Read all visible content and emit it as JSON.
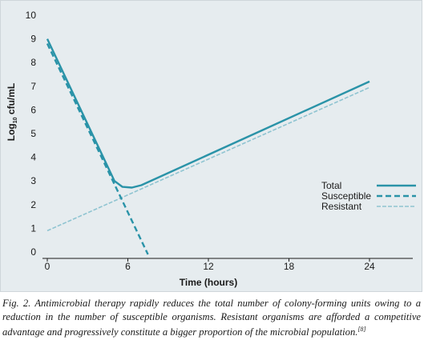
{
  "chart_data": {
    "type": "line",
    "xlabel": "Time (hours)",
    "ylabel_main": "Log",
    "ylabel_sub": "10",
    "ylabel_rest": " cfu/mL",
    "x_ticks": [
      0,
      6,
      12,
      18,
      24
    ],
    "y_ticks": [
      0,
      1,
      2,
      3,
      4,
      5,
      6,
      7,
      8,
      9,
      10
    ],
    "xlim": [
      0,
      27
    ],
    "ylim": [
      0,
      10
    ],
    "grid": false,
    "legend_position": "right",
    "series": [
      {
        "name": "Total",
        "color": "#2a93a8",
        "style": "solid",
        "points": [
          [
            0,
            9
          ],
          [
            5,
            3.0
          ],
          [
            5.6,
            2.75
          ],
          [
            6.3,
            2.72
          ],
          [
            7,
            2.82
          ],
          [
            24,
            7.2
          ]
        ]
      },
      {
        "name": "Susceptible",
        "color": "#2a93a8",
        "style": "dashed",
        "points": [
          [
            0,
            8.8
          ],
          [
            7.5,
            -0.1
          ]
        ]
      },
      {
        "name": "Resistant",
        "color": "#8fc4d1",
        "style": "dashed-light",
        "points": [
          [
            0,
            0.9
          ],
          [
            24,
            6.95
          ]
        ]
      }
    ]
  },
  "caption": {
    "text": "Fig. 2. Antimicrobial therapy rapidly reduces the total number of colony-forming units owing to a reduction in the number of susceptible organisms. Resistant organisms are afforded a competitive advantage and progressively constitute a bigger proportion of the microbial population.",
    "ref": "[8]"
  }
}
